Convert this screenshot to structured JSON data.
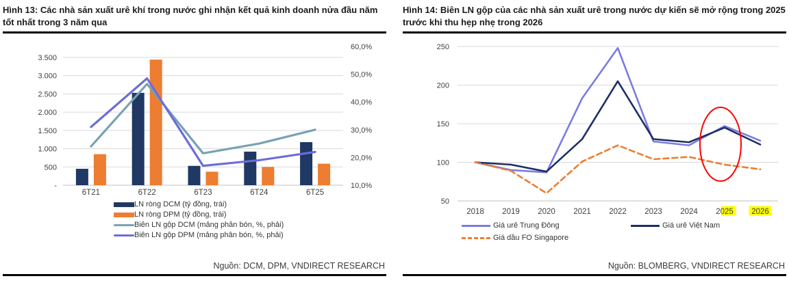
{
  "panels": [
    {
      "title": "Hình 13: Các nhà sản xuất urê khí trong nước ghi nhận kết quả kinh doanh nửa đầu năm tốt nhất trong 3 năm qua",
      "source": "Nguồn: DCM, DPM, VNDIRECT RESEARCH"
    },
    {
      "title": "Hình 14: Biên LN gộp của các nhà sản xuất urê trong nước dự kiến sẽ mở rộng trong 2025 trước khi thu hẹp nhẹ trong 2026",
      "source": "Nguồn: BLOMBERG, VNDIRECT RESEARCH"
    }
  ],
  "chart_data": [
    {
      "type": "bar",
      "subtype": "combo-bar-line-dual-axis",
      "title": "Hình 13: Các nhà sản xuất urê khí trong nước ghi nhận kết quả kinh doanh nửa đầu năm tốt nhất trong 3 năm qua",
      "categories": [
        "6T21",
        "6T22",
        "6T23",
        "6T24",
        "6T25"
      ],
      "left_axis": {
        "min": 0,
        "max": 3800,
        "ticks": [
          0,
          500,
          1000,
          1500,
          2000,
          2500,
          3000,
          3500
        ],
        "tick_labels": [
          "-",
          "500",
          "1.000",
          "1.500",
          "2.000",
          "2.500",
          "3.000",
          "3.500"
        ],
        "unit": "tỷ đồng"
      },
      "right_axis": {
        "min": 10,
        "max": 60,
        "ticks": [
          10,
          20,
          30,
          40,
          50,
          60
        ],
        "tick_labels": [
          "10,0%",
          "20,0%",
          "30,0%",
          "40,0%",
          "50,0%",
          "60,0%"
        ],
        "unit": "%"
      },
      "series": [
        {
          "name": "LN ròng DCM (tỷ đồng, trái)",
          "marker": "bar",
          "axis": "left",
          "color": "#1F3864",
          "values": [
            450,
            2530,
            530,
            920,
            1180
          ]
        },
        {
          "name": "LN ròng DPM (tỷ đồng, trái)",
          "marker": "bar",
          "axis": "left",
          "color": "#ED7D31",
          "values": [
            850,
            3440,
            370,
            500,
            590
          ]
        },
        {
          "name": "Biên LN gộp DCM (mảng phân bón, %, phải)",
          "marker": "line",
          "axis": "right",
          "color": "#77A2B3",
          "values": [
            24,
            46.5,
            21.5,
            25,
            30
          ]
        },
        {
          "name": "Biên LN gộp DPM (mảng phân bón, %, phải)",
          "marker": "line",
          "axis": "right",
          "color": "#6C6CDB",
          "values": [
            31,
            48.5,
            17,
            19,
            22
          ]
        }
      ],
      "grid": true,
      "legend_position": "bottom"
    },
    {
      "type": "line",
      "title": "Hình 14: Biên LN gộp của các nhà sản xuất urê trong nước dự kiến sẽ mở rộng trong 2025 trước khi thu hẹp nhẹ trong 2026",
      "x": [
        "2018",
        "2019",
        "2020",
        "2021",
        "2022",
        "2023",
        "2024",
        "2025",
        "2026"
      ],
      "ylim": [
        50,
        250
      ],
      "yticks": [
        50,
        100,
        150,
        200,
        250
      ],
      "ytick_labels": [
        "50",
        "100",
        "150",
        "200",
        "250"
      ],
      "series": [
        {
          "name": "Giá urê Trung Đông",
          "color": "#7B7BE0",
          "dashed": false,
          "values": [
            100,
            90,
            87,
            183,
            248,
            127,
            122,
            147,
            128
          ]
        },
        {
          "name": "Giá urê Việt Nam",
          "color": "#1C2F63",
          "dashed": false,
          "values": [
            100,
            97,
            88,
            130,
            205,
            130,
            126,
            145,
            123
          ]
        },
        {
          "name": "Giá dầu FO Singapore",
          "color": "#ED7D31",
          "dashed": true,
          "values": [
            100,
            89,
            60,
            101,
            122,
            104,
            107,
            97,
            91
          ]
        }
      ],
      "grid": true,
      "legend_position": "bottom",
      "annotations": {
        "red_ellipse_year": "2025",
        "ellipse_color": "#FF0000",
        "year_highlights": {
          "2025": "partial",
          "2026": "full"
        },
        "highlight_color": "#FFFF00"
      }
    }
  ],
  "colors": {
    "grid": "#D9D9D9",
    "axis_line": "#BFBFBF",
    "tick_text": "#404040",
    "title_text": "#1A1A1A",
    "rule": "#000000"
  }
}
